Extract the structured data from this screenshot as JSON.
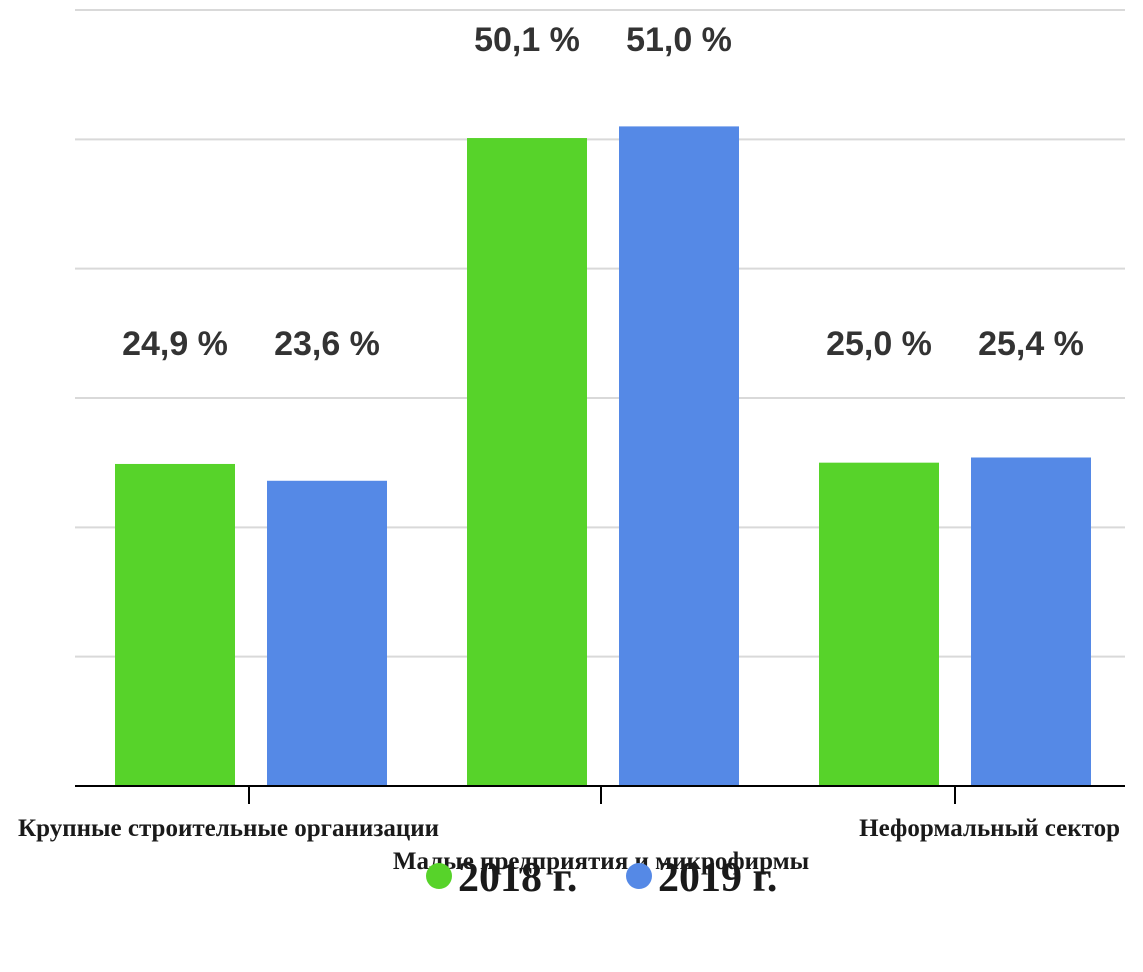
{
  "chart_data": {
    "type": "bar",
    "categories": [
      "Крупные строительные организации",
      "Малые предприятия и микрофирмы",
      "Неформальный сектор"
    ],
    "series": [
      {
        "name": "2018 г.",
        "color": "#57d32a",
        "values": [
          24.9,
          50.1,
          25.0
        ],
        "labels": [
          "24,9 %",
          "50,1 %",
          "25,0 %"
        ]
      },
      {
        "name": "2019 г.",
        "color": "#5589e6",
        "values": [
          23.6,
          51.0,
          25.4
        ],
        "labels": [
          "23,6 %",
          "51,0 %",
          "25,4 %"
        ]
      }
    ],
    "ylim": [
      0,
      60
    ],
    "grid": true,
    "legend_position": "bottom-center"
  }
}
